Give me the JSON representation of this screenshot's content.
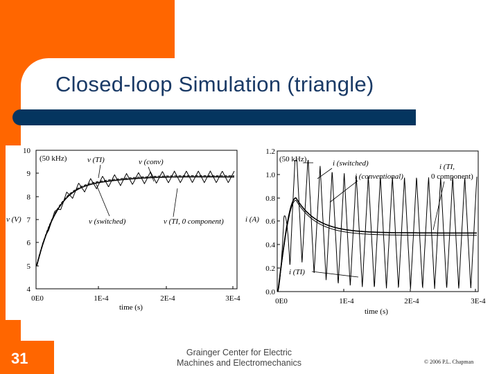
{
  "slide": {
    "title": "Closed-loop Simulation (triangle)",
    "number": "31",
    "footer_center_line1": "Grainger Center for Electric",
    "footer_center_line2": "Machines and Electromechanics",
    "footer_right": "© 2006 P.L. Chapman"
  },
  "colors": {
    "accent_orange": "#ff6600",
    "title_bar": "#05355f",
    "title_text": "#1a3a66"
  },
  "chart_data": [
    {
      "type": "line",
      "ylabel": "v (V)",
      "xlabel": "time (s)",
      "xticks": [
        "0E0",
        "1E-4",
        "2E-4",
        "3E-4"
      ],
      "yticks": [
        "4",
        "5",
        "6",
        "7",
        "8",
        "9",
        "10"
      ],
      "ylim": [
        4,
        10
      ],
      "xlim": [
        0,
        0.00033
      ],
      "annotations": [
        "(50 kHz)",
        "v (TI)",
        "v (conv)",
        "v (switched)",
        "v (TI, 0 component)"
      ]
    },
    {
      "type": "line",
      "ylabel": "i (A)",
      "xlabel": "time (s)",
      "xticks": [
        "0E0",
        "1E-4",
        "2E-4",
        "3E-4"
      ],
      "yticks": [
        "0.0",
        "0.2",
        "0.4",
        "0.6",
        "0.8",
        "1.0",
        "1.2"
      ],
      "ylim": [
        0,
        1.2
      ],
      "xlim": [
        0,
        0.00033
      ],
      "annotations": [
        "(50 kHz)",
        "i (switched)",
        "i (conventional)",
        "i (TI,",
        "0 component)",
        "i (TI)"
      ]
    }
  ]
}
